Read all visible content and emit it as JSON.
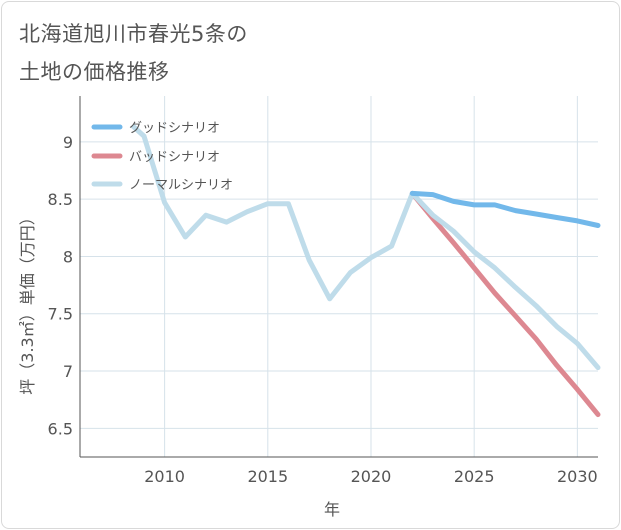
{
  "chart_data": {
    "type": "line",
    "title_lines": [
      "北海道旭川市春光5条の",
      "土地の価格推移"
    ],
    "xlabel": "年",
    "ylabel": "坪（3.3㎡）単価（万円）",
    "xlim": [
      2005.9,
      2031
    ],
    "ylim": [
      6.25,
      9.4
    ],
    "x_ticks": [
      2010,
      2015,
      2020,
      2025,
      2030
    ],
    "y_ticks": [
      6.5,
      7,
      7.5,
      8,
      8.5,
      9
    ],
    "colors": {
      "good": "#72b8ea",
      "bad": "#dd8891",
      "normal": "#bfdcea",
      "grid": "#d6e2ea",
      "axis": "#555555"
    },
    "series": [
      {
        "key": "good",
        "name": "グッドシナリオ",
        "x": [
          2022,
          2023,
          2024,
          2025,
          2026,
          2027,
          2028,
          2029,
          2030,
          2031
        ],
        "values": [
          8.55,
          8.54,
          8.48,
          8.45,
          8.45,
          8.4,
          8.37,
          8.34,
          8.31,
          8.27
        ]
      },
      {
        "key": "bad",
        "name": "バッドシナリオ",
        "x": [
          2022,
          2023,
          2024,
          2025,
          2026,
          2027,
          2028,
          2029,
          2030,
          2031
        ],
        "values": [
          8.55,
          8.33,
          8.12,
          7.9,
          7.68,
          7.48,
          7.28,
          7.05,
          6.84,
          6.62
        ]
      },
      {
        "key": "normal",
        "name": "ノーマルシナリオ",
        "x": [
          2008.5,
          2009,
          2010,
          2011,
          2012,
          2013,
          2014,
          2015,
          2016,
          2017,
          2018,
          2019,
          2020,
          2021,
          2022,
          2023,
          2024,
          2025,
          2026,
          2027,
          2028,
          2029,
          2030,
          2031
        ],
        "values": [
          9.13,
          9.05,
          8.47,
          8.17,
          8.36,
          8.3,
          8.39,
          8.46,
          8.46,
          7.97,
          7.63,
          7.86,
          7.99,
          8.09,
          8.55,
          8.36,
          8.22,
          8.04,
          7.9,
          7.73,
          7.57,
          7.39,
          7.24,
          7.03
        ]
      }
    ]
  }
}
